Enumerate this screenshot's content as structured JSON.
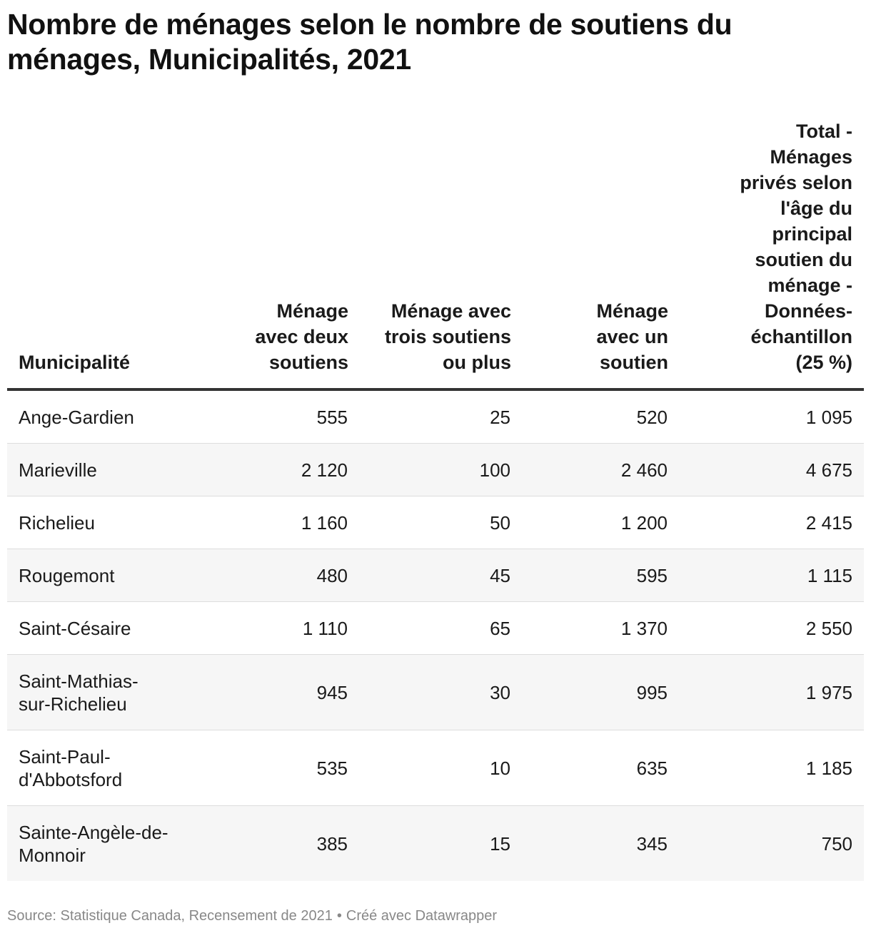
{
  "title": "Nombre de ménages selon le nombre de soutiens du ménages, Municipalités, 2021",
  "footer": {
    "source": "Source: Statistique Canada, Recensement de 2021",
    "separator": "•",
    "credit": "Créé avec Datawrapper"
  },
  "chart_data": {
    "type": "table",
    "title": "Nombre de ménages selon le nombre de soutiens du ménages, Municipalités, 2021",
    "columns": [
      "Municipalité",
      "Ménage avec deux soutiens",
      "Ménage avec trois soutiens ou plus",
      "Ménage avec un soutien",
      "Total - Ménages privés selon l'âge du principal soutien du ménage - Données-échantillon (25 %)"
    ],
    "rows": [
      {
        "name": "Ange-Gardien",
        "values": [
          "555",
          "25",
          "520",
          "1 095"
        ]
      },
      {
        "name": "Marieville",
        "values": [
          "2 120",
          "100",
          "2 460",
          "4 675"
        ]
      },
      {
        "name": "Richelieu",
        "values": [
          "1 160",
          "50",
          "1 200",
          "2 415"
        ]
      },
      {
        "name": "Rougemont",
        "values": [
          "480",
          "45",
          "595",
          "1 115"
        ]
      },
      {
        "name": "Saint-Césaire",
        "values": [
          "1 110",
          "65",
          "1 370",
          "2 550"
        ]
      },
      {
        "name": "Saint-Mathias-sur-Richelieu",
        "values": [
          "945",
          "30",
          "995",
          "1 975"
        ]
      },
      {
        "name": "Saint-Paul-d'Abbotsford",
        "values": [
          "535",
          "10",
          "635",
          "1 185"
        ]
      },
      {
        "name": "Sainte-Angèle-de-Monnoir",
        "values": [
          "385",
          "15",
          "345",
          "750"
        ]
      }
    ]
  }
}
